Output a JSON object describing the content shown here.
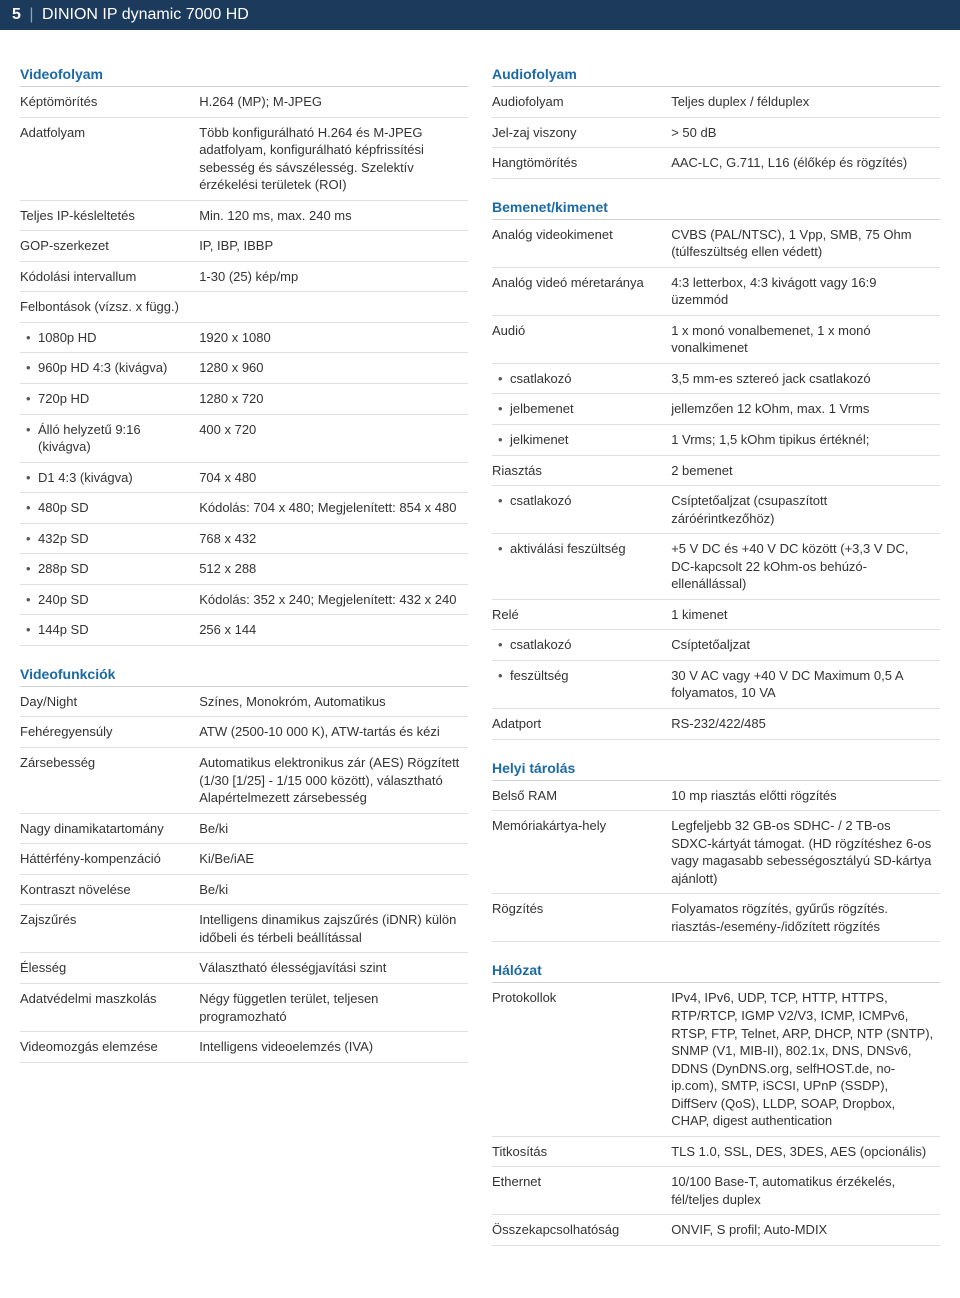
{
  "header": {
    "page_number": "5",
    "title": "DINION IP dynamic 7000 HD"
  },
  "left": {
    "videofolyam_title": "Videofolyam",
    "videofolyam": [
      {
        "label": "Képtömörítés",
        "value": "H.264 (MP); M-JPEG"
      },
      {
        "label": "Adatfolyam",
        "value": "Több konfigurálható H.264 és M-JPEG adatfolyam, konfigurálható képfrissítési sebesség és sávszélesség. Szelektív érzékelési területek (ROI)"
      },
      {
        "label": "Teljes IP-késleltetés",
        "value": "Min. 120 ms, max. 240 ms"
      },
      {
        "label": "GOP-szerkezet",
        "value": "IP, IBP, IBBP"
      },
      {
        "label": "Kódolási intervallum",
        "value": "1-30 (25) kép/mp"
      }
    ],
    "felbontasok_label": "Felbontások (vízsz. x függ.)",
    "felbontasok": [
      {
        "label": "1080p HD",
        "value": "1920 x 1080"
      },
      {
        "label": "960p HD 4:3 (kivágva)",
        "value": "1280 x 960"
      },
      {
        "label": "720p HD",
        "value": "1280 x 720"
      },
      {
        "label": "Álló helyzetű 9:16 (kivágva)",
        "value": "400 x 720"
      },
      {
        "label": "D1 4:3 (kivágva)",
        "value": "704 x 480"
      },
      {
        "label": "480p SD",
        "value": "Kódolás: 704 x 480; Megjelenített: 854 x 480"
      },
      {
        "label": "432p SD",
        "value": "768 x 432"
      },
      {
        "label": "288p SD",
        "value": "512 x 288"
      },
      {
        "label": "240p SD",
        "value": "Kódolás: 352 x 240; Megjelenített: 432 x 240"
      },
      {
        "label": "144p SD",
        "value": "256 x 144"
      }
    ],
    "videofunkciok_title": "Videofunkciók",
    "videofunkciok": [
      {
        "label": "Day/Night",
        "value": "Színes, Monokróm, Automatikus"
      },
      {
        "label": "Fehéregyensúly",
        "value": "ATW (2500-10 000 K), ATW-tartás és kézi"
      },
      {
        "label": "Zársebesség",
        "value": "Automatikus elektronikus zár (AES) Rögzített (1/30 [1/25] - 1/15 000 között), választható Alapértelmezett zársebesség"
      },
      {
        "label": "Nagy dinamikatartomány",
        "value": "Be/ki"
      },
      {
        "label": "Háttérfény-kompenzáció",
        "value": "Ki/Be/iAE"
      },
      {
        "label": "Kontraszt növelése",
        "value": "Be/ki"
      },
      {
        "label": "Zajszűrés",
        "value": "Intelligens dinamikus zajszűrés (iDNR) külön időbeli és térbeli beállítással"
      },
      {
        "label": "Élesség",
        "value": "Választható élességjavítási szint"
      },
      {
        "label": "Adatvédelmi maszkolás",
        "value": "Négy független terület, teljesen programozható"
      },
      {
        "label": "Videomozgás elemzése",
        "value": "Intelligens videoelemzés (IVA)"
      }
    ]
  },
  "right": {
    "audiofolyam_title": "Audiofolyam",
    "audiofolyam": [
      {
        "label": "Audiofolyam",
        "value": "Teljes duplex / félduplex"
      },
      {
        "label": "Jel-zaj viszony",
        "value": "> 50 dB"
      },
      {
        "label": "Hangtömörítés",
        "value": "AAC-LC, G.711, L16 (élőkép és rögzítés)"
      }
    ],
    "bemenet_title": "Bemenet/kimenet",
    "bemenet_rows": [
      {
        "label": "Analóg videokimenet",
        "value": "CVBS (PAL/NTSC), 1 Vpp, SMB, 75 Ohm (túlfeszültség ellen védett)",
        "indent": false
      },
      {
        "label": "Analóg videó méretaránya",
        "value": "4:3 letterbox, 4:3 kivágott vagy 16:9 üzemmód",
        "indent": false
      },
      {
        "label": "Audió",
        "value": "1 x monó vonalbemenet, 1 x monó vonalkimenet",
        "indent": false
      },
      {
        "label": "csatlakozó",
        "value": "3,5 mm-es sztereó jack csatlakozó",
        "indent": true
      },
      {
        "label": "jelbemenet",
        "value": "jellemzően 12 kOhm, max. 1 Vrms",
        "indent": true
      },
      {
        "label": "jelkimenet",
        "value": "1 Vrms; 1,5 kOhm tipikus értéknél;",
        "indent": true
      },
      {
        "label": "Riasztás",
        "value": "2 bemenet",
        "indent": false
      },
      {
        "label": "csatlakozó",
        "value": "Csíptetőaljzat (csupaszított záróérintkezőhöz)",
        "indent": true
      },
      {
        "label": "aktiválási feszültség",
        "value": "+5 V DC és +40 V DC között (+3,3 V DC, DC-kapcsolt 22 kOhm-os behúzó-ellenállással)",
        "indent": true
      },
      {
        "label": "Relé",
        "value": "1 kimenet",
        "indent": false
      },
      {
        "label": "csatlakozó",
        "value": "Csíptetőaljzat",
        "indent": true
      },
      {
        "label": "feszültség",
        "value": "30 V AC vagy +40 V DC Maximum 0,5 A folyamatos, 10 VA",
        "indent": true
      },
      {
        "label": "Adatport",
        "value": "RS-232/422/485",
        "indent": false
      }
    ],
    "helyi_title": "Helyi tárolás",
    "helyi": [
      {
        "label": "Belső RAM",
        "value": "10 mp riasztás előtti rögzítés"
      },
      {
        "label": "Memóriakártya-hely",
        "value": "Legfeljebb 32 GB-os SDHC- / 2 TB-os SDXC-kártyát támogat. (HD rögzítéshez 6-os vagy magasabb sebességosztályú SD-kártya ajánlott)"
      },
      {
        "label": "Rögzítés",
        "value": "Folyamatos rögzítés, gyűrűs rögzítés. riasztás-/esemény-/időzített rögzítés"
      }
    ],
    "halozat_title": "Hálózat",
    "halozat": [
      {
        "label": "Protokollok",
        "value": "IPv4, IPv6, UDP, TCP, HTTP, HTTPS, RTP/RTCP, IGMP V2/V3, ICMP, ICMPv6, RTSP, FTP, Telnet, ARP, DHCP, NTP (SNTP), SNMP (V1, MIB-II), 802.1x, DNS, DNSv6, DDNS (DynDNS.org, selfHOST.de, no-ip.com), SMTP, iSCSI, UPnP (SSDP), DiffServ (QoS), LLDP, SOAP, Dropbox, CHAP, digest authentication"
      },
      {
        "label": "Titkosítás",
        "value": "TLS 1.0, SSL, DES, 3DES, AES (opcionális)"
      },
      {
        "label": "Ethernet",
        "value": "10/100 Base-T, automatikus érzékelés, fél/teljes duplex"
      },
      {
        "label": "Összekapcsolhatóság",
        "value": "ONVIF, S profil; Auto-MDIX"
      }
    ]
  }
}
